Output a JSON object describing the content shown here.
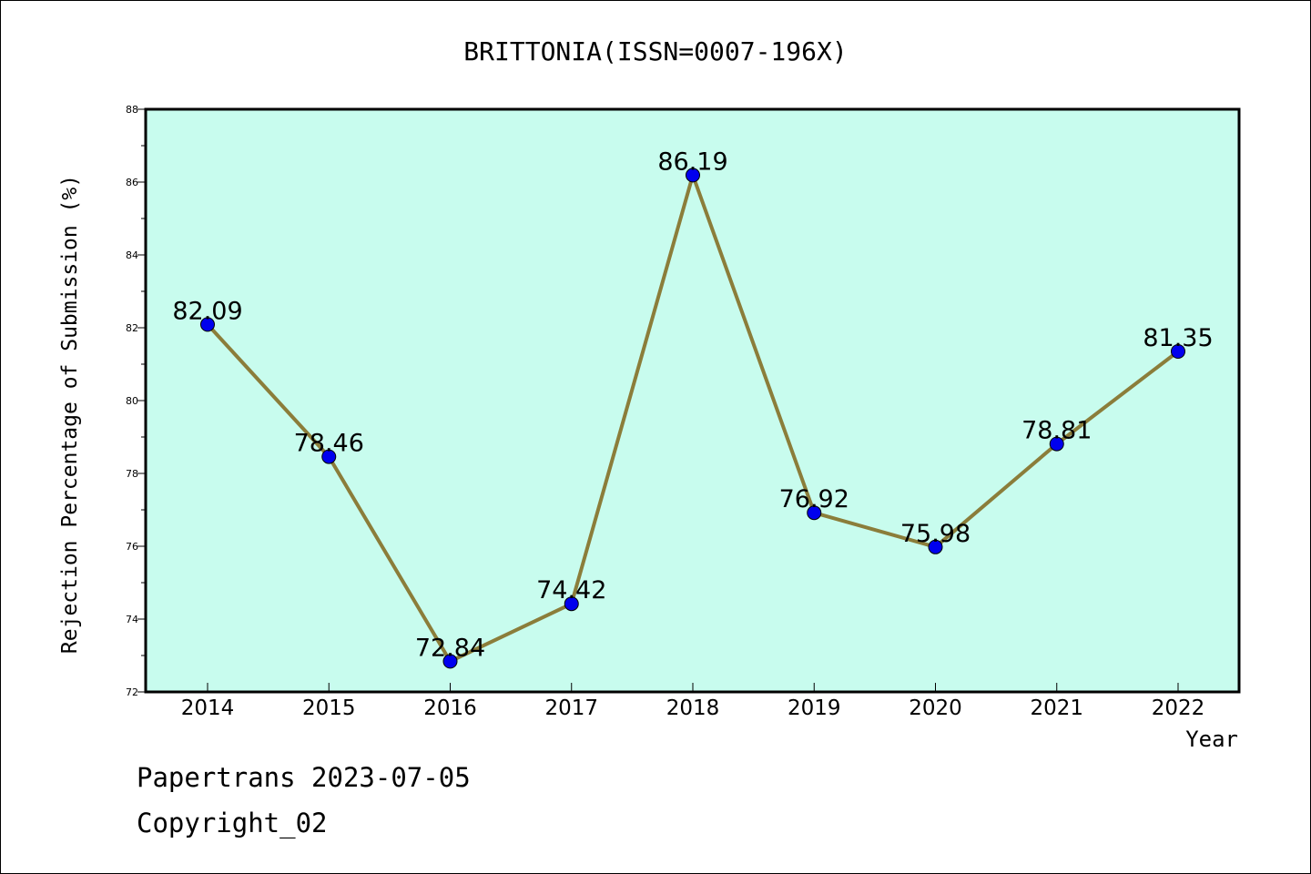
{
  "chart_data": {
    "type": "line",
    "title": "BRITTONIA(ISSN=0007-196X)",
    "xlabel": "Year",
    "ylabel": "Rejection Percentage of Submission (%)",
    "x": [
      "2014",
      "2015",
      "2016",
      "2017",
      "2018",
      "2019",
      "2020",
      "2021",
      "2022"
    ],
    "series": [
      {
        "values": [
          82.09,
          78.46,
          72.84,
          74.42,
          86.19,
          76.92,
          75.98,
          78.81,
          81.35
        ],
        "labels": [
          "82.09",
          "78.46",
          "72.84",
          "74.42",
          "86.19",
          "76.92",
          "75.98",
          "78.81",
          "81.35"
        ]
      }
    ],
    "ylim": [
      72,
      88
    ],
    "yticks": [
      "72",
      "74",
      "76",
      "78",
      "80",
      "82",
      "84",
      "86",
      "88"
    ],
    "grid": false,
    "line_color": "#8b7d3a",
    "marker_color": "#0000ee",
    "plot_background": "#c8fcee"
  },
  "footer": {
    "line1": "Papertrans 2023-07-05",
    "line2": "Copyright_02"
  }
}
